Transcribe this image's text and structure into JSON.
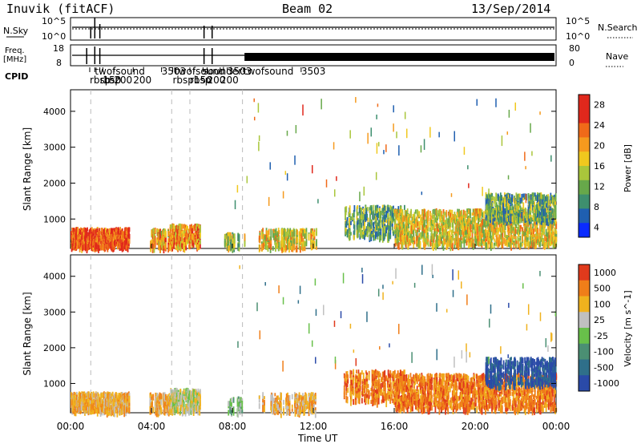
{
  "chart_data": {
    "type": "heatmap",
    "header": {
      "station": "Inuvik (fitACF)",
      "beam": "Beam 02",
      "date": "13/Sep/2014"
    },
    "x_axis": {
      "label": "Time UT",
      "range_hours": [
        0,
        24
      ],
      "ticks": [
        0,
        4,
        8,
        12,
        16,
        20,
        24
      ],
      "tick_labels": [
        "00:00",
        "04:00",
        "08:00",
        "12:00",
        "16:00",
        "20:00",
        "00:00"
      ],
      "dashed_lines_hours": [
        1.0,
        5.0,
        5.9,
        8.5
      ]
    },
    "status_panels": {
      "sky_search": {
        "left_label": "N.Sky",
        "right_label": "N.Search",
        "left_ticks": [
          "10^5",
          "10^0"
        ],
        "right_ticks": [
          "10^5",
          "10^0"
        ]
      },
      "freq_nave": {
        "left_label": "Freq.",
        "left_unit": "[MHz]",
        "right_label": "Nave",
        "left_ticks": [
          "18",
          "8"
        ],
        "right_ticks": [
          "80",
          "0"
        ]
      },
      "cpid": {
        "label": "CPID",
        "programs": [
          {
            "name": "rbsp",
            "hour": 0.95,
            "row": 2
          },
          {
            "name": "twofsound",
            "hour": 1.2,
            "row": 1
          },
          {
            "name": "rbsp",
            "hour": 1.45,
            "row": 2
          },
          {
            "name": "150",
            "hour": 1.6,
            "row": 2
          },
          {
            "name": "200",
            "hour": 2.15,
            "row": 2
          },
          {
            "name": "200",
            "hour": 3.1,
            "row": 2
          },
          {
            "name": "3503",
            "hour": 4.5,
            "row": 1
          },
          {
            "name": "twofsound",
            "hour": 5.15,
            "row": 1
          },
          {
            "name": "rbsp",
            "hour": 5.05,
            "row": 2
          },
          {
            "name": "rbsp",
            "hour": 5.9,
            "row": 2
          },
          {
            "name": "150",
            "hour": 6.1,
            "row": 2
          },
          {
            "name": "sounder",
            "hour": 6.55,
            "row": 1
          },
          {
            "name": "200",
            "hour": 6.75,
            "row": 2
          },
          {
            "name": "200",
            "hour": 7.4,
            "row": 2
          },
          {
            "name": "3503",
            "hour": 7.75,
            "row": 1
          },
          {
            "name": "twofsound",
            "hour": 8.55,
            "row": 1
          },
          {
            "name": "3503",
            "hour": 11.4,
            "row": 1
          }
        ]
      }
    },
    "panels": [
      {
        "name": "power",
        "ylabel": "Slant Range [km]",
        "ylim": [
          180,
          4600
        ],
        "yticks": [
          1000,
          2000,
          3000,
          4000
        ],
        "colorbar_label": "Power [dB]",
        "colorbar_ticks": [
          "28",
          "24",
          "20",
          "16",
          "12",
          "8",
          "4"
        ],
        "color_levels": [
          "#0a2bff",
          "#1f5fb0",
          "#3e8f6e",
          "#67a84a",
          "#a9c63b",
          "#f0c81e",
          "#f59a1e",
          "#f06a19",
          "#e0281c",
          "#e0281c"
        ],
        "color_range": [
          0,
          30
        ]
      },
      {
        "name": "velocity",
        "ylabel": "Slant Range [km]",
        "ylim": [
          180,
          4600
        ],
        "yticks": [
          1000,
          2000,
          3000,
          4000
        ],
        "colorbar_label": "Velocity [m s^-1]",
        "colorbar_ticks": [
          "1000",
          "500",
          "100",
          "25",
          "-25",
          "-100",
          "-500",
          "-1000"
        ],
        "color_levels": [
          "#2a4aa8",
          "#2f6f8a",
          "#4b8f73",
          "#68c04a",
          "#c0c0c0",
          "#f0b21e",
          "#f07e19",
          "#e03a1c"
        ]
      }
    ],
    "echo_regions": [
      {
        "t0": 0.0,
        "t1": 2.9,
        "r0": 260,
        "r1": 780,
        "power": 24,
        "vel_class": 5,
        "density": 0.95
      },
      {
        "t0": 3.9,
        "t1": 4.9,
        "r0": 260,
        "r1": 760,
        "power": 18,
        "vel_class": 5,
        "density": 0.7
      },
      {
        "t0": 4.9,
        "t1": 6.4,
        "r0": 280,
        "r1": 880,
        "power": 20,
        "vel_class": 4,
        "density": 0.85
      },
      {
        "t0": 7.6,
        "t1": 8.6,
        "r0": 240,
        "r1": 640,
        "power": 14,
        "vel_class": 3,
        "density": 0.4
      },
      {
        "t0": 9.3,
        "t1": 12.2,
        "r0": 240,
        "r1": 760,
        "power": 16,
        "vel_class": 5,
        "density": 0.45
      },
      {
        "t0": 13.5,
        "t1": 16.5,
        "r0": 540,
        "r1": 1400,
        "power": 10,
        "vel_class": 6,
        "density": 0.6
      },
      {
        "t0": 16.0,
        "t1": 24.0,
        "r0": 320,
        "r1": 1300,
        "power": 16,
        "vel_class": 6,
        "density": 0.85
      },
      {
        "t0": 20.5,
        "t1": 24.0,
        "r0": 1000,
        "r1": 1750,
        "power": 10,
        "vel_class": 0,
        "density": 0.7
      }
    ]
  }
}
